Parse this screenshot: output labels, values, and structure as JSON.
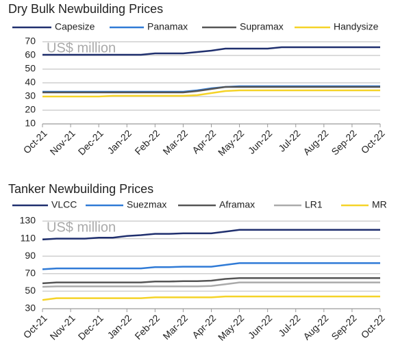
{
  "chart_data": [
    {
      "type": "line",
      "title": "Dry Bulk Newbuilding Prices",
      "annotation": "US$ million",
      "categories": [
        "Oct-21",
        null,
        "Nov-21",
        null,
        "Dec-21",
        null,
        "Jan-22",
        null,
        "Feb-22",
        null,
        "Mar-22",
        null,
        "Apr-22",
        null,
        "May-22",
        null,
        "Jun-22",
        null,
        "Jul-22",
        null,
        "Aug-22",
        null,
        "Sep-22",
        null,
        "Oct-22"
      ],
      "ylim": [
        10,
        70
      ],
      "yticks": [
        10,
        20,
        30,
        40,
        50,
        60,
        70
      ],
      "grid": true,
      "series": [
        {
          "name": "Capesize",
          "color": "#1f2f6e",
          "values": [
            60.5,
            60.5,
            60.5,
            60.5,
            60.5,
            60.5,
            60.5,
            60.5,
            61.5,
            61.5,
            61.5,
            62.5,
            63.5,
            65,
            65,
            65,
            65,
            66,
            66,
            66,
            66,
            66,
            66,
            66,
            66
          ]
        },
        {
          "name": "Panamax",
          "color": "#2f7ad6",
          "values": [
            33.5,
            33.5,
            33.5,
            33.5,
            33.5,
            33.5,
            33.5,
            33.5,
            33.5,
            33.5,
            33.5,
            34.5,
            36,
            37,
            37.5,
            37.5,
            37.5,
            37.5,
            37.5,
            37.5,
            37.5,
            37.5,
            37.5,
            37.5,
            37.5
          ]
        },
        {
          "name": "Supramax",
          "color": "#555555",
          "values": [
            33,
            33,
            33,
            33,
            33,
            33,
            33,
            33,
            33,
            33,
            33,
            34,
            35.5,
            37,
            37,
            37,
            37,
            37,
            37,
            37,
            37,
            37,
            37,
            37,
            37
          ]
        },
        {
          "name": "Handysize",
          "color": "#f5d327",
          "values": [
            30,
            30,
            30,
            30,
            30,
            30.5,
            30.5,
            30.5,
            30.5,
            30.5,
            30.5,
            31,
            32.5,
            34,
            34.5,
            34.5,
            34.5,
            34.5,
            34.5,
            34.5,
            34.5,
            34.5,
            34.5,
            34.5,
            34.5
          ]
        }
      ]
    },
    {
      "type": "line",
      "title": "Tanker Newbuilding Prices",
      "annotation": "US$ million",
      "categories": [
        "Oct-21",
        null,
        "Nov-21",
        null,
        "Dec-21",
        null,
        "Jan-22",
        null,
        "Feb-22",
        null,
        "Mar-22",
        null,
        "Apr-22",
        null,
        "May-22",
        null,
        "Jun-22",
        null,
        "Jul-22",
        null,
        "Aug-22",
        null,
        "Sep-22",
        null,
        "Oct-22"
      ],
      "ylim": [
        30,
        130
      ],
      "yticks": [
        30,
        50,
        70,
        90,
        110,
        130
      ],
      "grid": true,
      "series": [
        {
          "name": "VLCC",
          "color": "#1f2f6e",
          "values": [
            109,
            110,
            110,
            110,
            111,
            111,
            113,
            114,
            115.5,
            115.5,
            116,
            116,
            116,
            118,
            120,
            120,
            120,
            120,
            120,
            120,
            120,
            120,
            120,
            120,
            120
          ]
        },
        {
          "name": "Suezmax",
          "color": "#2f7ad6",
          "values": [
            75,
            76,
            76,
            76,
            76,
            76,
            76,
            76,
            77.5,
            77.5,
            78,
            78,
            78,
            80,
            82,
            82,
            82,
            82,
            82,
            82,
            82,
            82,
            82,
            82,
            82
          ]
        },
        {
          "name": "Aframax",
          "color": "#555555",
          "values": [
            59,
            60,
            60,
            60,
            60,
            60,
            60,
            60,
            61,
            61,
            61.5,
            61.5,
            62,
            64,
            65,
            65,
            65,
            65,
            65,
            65,
            65,
            65,
            65,
            65,
            65
          ]
        },
        {
          "name": "LR1",
          "color": "#aaaaaa",
          "values": [
            55,
            55.5,
            55.5,
            55.5,
            55.5,
            55.5,
            55.5,
            55.5,
            55.5,
            55.5,
            55.5,
            55.5,
            56,
            58,
            60,
            60,
            60,
            60,
            60,
            60,
            60,
            60,
            60,
            60,
            60
          ]
        },
        {
          "name": "MR",
          "color": "#f5d327",
          "values": [
            40,
            42,
            42,
            42,
            42,
            42,
            42,
            42,
            43,
            43,
            43,
            43,
            43,
            44,
            44,
            44,
            44,
            44,
            44,
            44,
            44,
            44,
            44,
            44,
            44
          ]
        }
      ]
    }
  ]
}
